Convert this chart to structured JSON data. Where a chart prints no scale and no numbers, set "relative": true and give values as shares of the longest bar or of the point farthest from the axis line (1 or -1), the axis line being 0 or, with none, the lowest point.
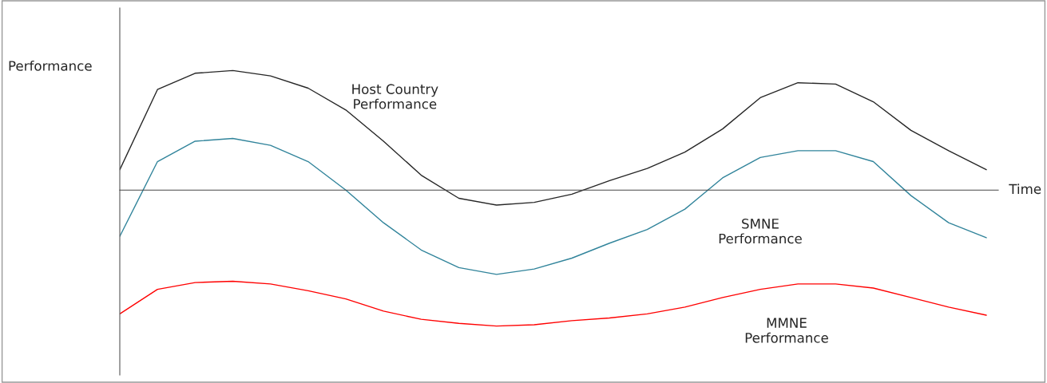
{
  "chart_data": {
    "type": "line",
    "relative": true,
    "xlabel": "Time",
    "ylabel": "Performance",
    "categories": [
      null,
      null,
      null,
      null,
      null,
      null,
      null,
      null,
      null,
      null,
      null,
      null,
      null,
      null,
      null,
      null,
      null,
      null,
      null,
      null,
      null,
      null,
      null,
      null
    ],
    "series": [
      {
        "name": "Host Country\nPerformance",
        "color": "#262626",
        "values": [
          0.15,
          0.74,
          0.86,
          0.88,
          0.84,
          0.75,
          0.59,
          0.36,
          0.11,
          -0.06,
          -0.11,
          -0.09,
          -0.03,
          0.07,
          0.16,
          0.28,
          0.45,
          0.68,
          0.79,
          0.78,
          0.65,
          0.44,
          0.29,
          0.15
        ]
      },
      {
        "name": "SMNE\nPerformance",
        "color": "#31849b",
        "values": [
          -0.34,
          0.21,
          0.36,
          0.38,
          0.33,
          0.21,
          0,
          -0.24,
          -0.44,
          -0.57,
          -0.62,
          -0.58,
          -0.5,
          -0.39,
          -0.29,
          -0.14,
          0.09,
          0.24,
          0.29,
          0.29,
          0.21,
          -0.04,
          -0.24,
          -0.35
        ]
      },
      {
        "name": "MMNE\nPerformance",
        "color": "#ff0000",
        "values": [
          -0.91,
          -0.73,
          -0.68,
          -0.67,
          -0.69,
          -0.74,
          -0.8,
          -0.89,
          -0.95,
          -0.98,
          -1,
          -0.99,
          -0.96,
          -0.94,
          -0.91,
          -0.86,
          -0.79,
          -0.73,
          -0.69,
          -0.69,
          -0.72,
          -0.79,
          -0.86,
          -0.92
        ]
      }
    ],
    "legend": false,
    "marker": "none",
    "line_style": "solid"
  }
}
